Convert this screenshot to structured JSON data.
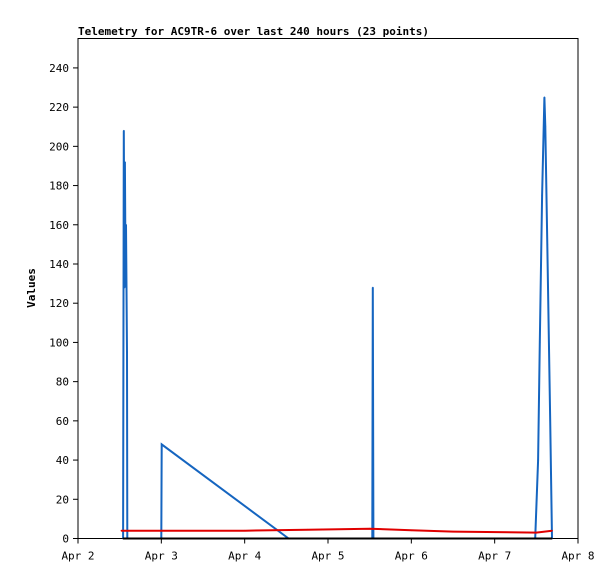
{
  "chart_data": {
    "type": "line",
    "title": "Telemetry for AC9TR-6 over last 240 hours (23 points)",
    "xlabel": "",
    "ylabel": "Values",
    "xlim": [
      "2024-04-02T00:00",
      "2024-04-08T00:00"
    ],
    "ylim": [
      0,
      255
    ],
    "x_ticks": [
      {
        "x": "2024-04-02T00:00",
        "label": "Apr 2"
      },
      {
        "x": "2024-04-03T00:00",
        "label": "Apr 3"
      },
      {
        "x": "2024-04-04T00:00",
        "label": "Apr 4"
      },
      {
        "x": "2024-04-05T00:00",
        "label": "Apr 5"
      },
      {
        "x": "2024-04-06T00:00",
        "label": "Apr 6"
      },
      {
        "x": "2024-04-07T00:00",
        "label": "Apr 7"
      },
      {
        "x": "2024-04-08T00:00",
        "label": "Apr 8"
      }
    ],
    "y_ticks": [
      0,
      20,
      40,
      60,
      80,
      100,
      120,
      140,
      160,
      180,
      200,
      220,
      240
    ],
    "grid": false,
    "series": [
      {
        "color": "#1565c0",
        "points": [
          {
            "x": "2024-04-02T13:00",
            "y": 0
          },
          {
            "x": "2024-04-02T13:12",
            "y": 208
          },
          {
            "x": "2024-04-02T13:24",
            "y": 128
          },
          {
            "x": "2024-04-02T13:30",
            "y": 192
          },
          {
            "x": "2024-04-02T13:42",
            "y": 130
          },
          {
            "x": "2024-04-02T13:50",
            "y": 160
          },
          {
            "x": "2024-04-02T14:06",
            "y": 95
          },
          {
            "x": "2024-04-02T14:12",
            "y": 0
          },
          {
            "x": "2024-04-03T00:00",
            "y": 0
          },
          {
            "x": "2024-04-03T00:06",
            "y": 48
          },
          {
            "x": "2024-04-04T12:40",
            "y": 0
          },
          {
            "x": "2024-04-05T12:45",
            "y": 0
          },
          {
            "x": "2024-04-05T12:55",
            "y": 128
          },
          {
            "x": "2024-04-05T13:05",
            "y": 0
          },
          {
            "x": "2024-04-07T11:40",
            "y": 0
          },
          {
            "x": "2024-04-07T12:30",
            "y": 40
          },
          {
            "x": "2024-04-07T13:00",
            "y": 100
          },
          {
            "x": "2024-04-07T13:40",
            "y": 175
          },
          {
            "x": "2024-04-07T14:20",
            "y": 225
          },
          {
            "x": "2024-04-07T14:35",
            "y": 210
          },
          {
            "x": "2024-04-07T15:10",
            "y": 150
          },
          {
            "x": "2024-04-07T16:00",
            "y": 60
          },
          {
            "x": "2024-04-07T16:30",
            "y": 0
          }
        ]
      },
      {
        "color": "#e00000",
        "points": [
          {
            "x": "2024-04-02T12:30",
            "y": 4
          },
          {
            "x": "2024-04-03T00:00",
            "y": 4
          },
          {
            "x": "2024-04-04T00:00",
            "y": 4
          },
          {
            "x": "2024-04-04T18:00",
            "y": 4.5
          },
          {
            "x": "2024-04-05T12:00",
            "y": 5
          },
          {
            "x": "2024-04-06T00:00",
            "y": 4.2
          },
          {
            "x": "2024-04-06T12:00",
            "y": 3.5
          },
          {
            "x": "2024-04-07T12:00",
            "y": 3
          },
          {
            "x": "2024-04-07T16:30",
            "y": 4
          }
        ]
      },
      {
        "color": "#000000",
        "points": [
          {
            "x": "2024-04-02T13:00",
            "y": 0
          },
          {
            "x": "2024-04-07T16:30",
            "y": 0
          }
        ]
      }
    ]
  }
}
